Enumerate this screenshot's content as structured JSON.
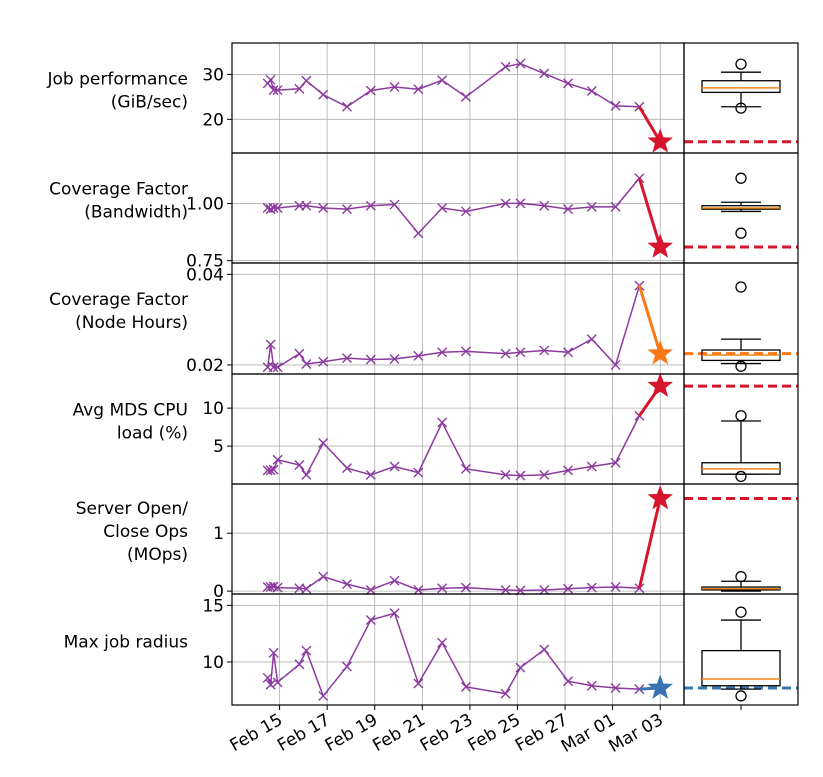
{
  "chart_data": {
    "type": "line",
    "x_axis": {
      "tick_labels": [
        "Feb 15",
        "Feb 17",
        "Feb 19",
        "Feb 21",
        "Feb 23",
        "Feb 25",
        "Feb 27",
        "Mar 01",
        "Mar 03"
      ],
      "tick_dates": [
        "2019-02-15",
        "2019-02-17",
        "2019-02-19",
        "2019-02-21",
        "2019-02-23",
        "2019-02-25",
        "2019-02-27",
        "2019-03-01",
        "2019-03-03"
      ],
      "range": [
        "2019-02-13",
        "2019-03-04"
      ]
    },
    "dates": [
      "2019-02-14T12",
      "2019-02-14T15",
      "2019-02-14T18",
      "2019-02-14T22",
      "2019-02-15T20",
      "2019-02-16T03",
      "2019-02-16T20",
      "2019-02-17T20",
      "2019-02-18T20",
      "2019-02-19T20",
      "2019-02-20T20",
      "2019-02-21T20",
      "2019-02-22T20",
      "2019-02-24T12",
      "2019-02-25T03",
      "2019-02-26T03",
      "2019-02-27T03",
      "2019-02-28T03",
      "2019-03-01T03",
      "2019-03-02T03"
    ],
    "series_color": "#8b3a9e",
    "panels": [
      {
        "ylabel": [
          "Job performance",
          "(GiB/sec)"
        ],
        "ylim": [
          12.5,
          37
        ],
        "yticks": [
          {
            "v": 20,
            "label": "20"
          },
          {
            "v": 30,
            "label": "30"
          }
        ],
        "values": [
          28.0,
          28.8,
          26.5,
          26.5,
          26.8,
          28.6,
          25.5,
          22.8,
          26.4,
          27.2,
          26.7,
          28.7,
          25.0,
          31.7,
          32.4,
          30.2,
          28.0,
          26.3,
          23.0,
          22.8
        ],
        "outlier": {
          "date": "2019-03-03",
          "value": 15.0,
          "color": "#d7152d",
          "reference": 15.0,
          "reference_color": "#d7152d"
        },
        "box": {
          "min": 22.8,
          "q1": 26.0,
          "median": 27.0,
          "q3": 28.6,
          "max": 30.5,
          "fliers": [
            22.5,
            32.3
          ]
        }
      },
      {
        "ylabel": [
          "Coverage Factor",
          "(Bandwidth)"
        ],
        "ylim": [
          0.74,
          1.22
        ],
        "yticks": [
          {
            "v": 0.75,
            "label": "0.75"
          },
          {
            "v": 1.0,
            "label": "1.00"
          }
        ],
        "values": [
          0.98,
          0.975,
          0.98,
          0.98,
          0.99,
          0.99,
          0.98,
          0.975,
          0.99,
          0.995,
          0.87,
          0.98,
          0.965,
          1.0,
          1.0,
          0.99,
          0.975,
          0.985,
          0.985,
          1.11
        ],
        "outlier": {
          "date": "2019-03-03",
          "value": 0.81,
          "color": "#d7152d",
          "reference": 0.81,
          "reference_color": "#d7152d"
        },
        "box": {
          "min": 0.965,
          "q1": 0.975,
          "median": 0.98,
          "q3": 0.99,
          "max": 1.005,
          "fliers": [
            0.87,
            1.11
          ]
        }
      },
      {
        "ylabel": [
          "Coverage Factor",
          "(Node Hours)"
        ],
        "ylim": [
          0.018,
          0.0425
        ],
        "yticks": [
          {
            "v": 0.02,
            "label": "0.02"
          },
          {
            "v": 0.04,
            "label": "0.04"
          }
        ],
        "values": [
          0.0195,
          0.0245,
          0.0195,
          0.0195,
          0.0225,
          0.0202,
          0.0207,
          0.0215,
          0.0212,
          0.0213,
          0.022,
          0.0228,
          0.023,
          0.0225,
          0.0228,
          0.0232,
          0.0228,
          0.0257,
          0.02,
          0.0375
        ],
        "outlier": {
          "date": "2019-03-03",
          "value": 0.0225,
          "color": "#fb7814",
          "reference": 0.0225,
          "reference_color": "#fb7814"
        },
        "box": {
          "min": 0.0203,
          "q1": 0.021,
          "median": 0.0222,
          "q3": 0.0233,
          "max": 0.0257,
          "fliers": [
            0.0197,
            0.0372
          ]
        }
      },
      {
        "ylabel": [
          "Avg MDS CPU",
          "load (%)"
        ],
        "ylim": [
          0,
          14.5
        ],
        "yticks": [
          {
            "v": 5,
            "label": "5"
          },
          {
            "v": 10,
            "label": "10"
          }
        ],
        "values": [
          1.8,
          1.8,
          1.9,
          3.2,
          2.5,
          1.2,
          5.4,
          2.1,
          1.2,
          2.3,
          1.5,
          8.1,
          2.0,
          1.2,
          1.1,
          1.2,
          1.8,
          2.3,
          2.8,
          9.0
        ],
        "outlier": {
          "date": "2019-03-03",
          "value": 12.9,
          "color": "#d7152d",
          "reference": 12.9,
          "reference_color": "#d7152d"
        },
        "box": {
          "min": 1.3,
          "q1": 1.3,
          "median": 2.0,
          "q3": 2.8,
          "max": 8.3,
          "fliers": [
            1.0,
            9.0
          ]
        }
      },
      {
        "ylabel": [
          "Server Open/",
          "Close Ops",
          "(MOps)"
        ],
        "ylim": [
          -0.05,
          1.85
        ],
        "yticks": [
          {
            "v": 0,
            "label": "0"
          },
          {
            "v": 1,
            "label": "1"
          }
        ],
        "values": [
          0.07,
          0.07,
          0.08,
          0.06,
          0.05,
          0.04,
          0.25,
          0.12,
          0.02,
          0.18,
          0.02,
          0.05,
          0.06,
          0.02,
          0.01,
          0.02,
          0.04,
          0.06,
          0.07,
          0.05
        ],
        "outlier": {
          "date": "2019-03-03",
          "value": 1.6,
          "color": "#d7152d",
          "reference": 1.6,
          "reference_color": "#d7152d"
        },
        "box": {
          "min": 0.0,
          "q1": 0.02,
          "median": 0.04,
          "q3": 0.07,
          "max": 0.17,
          "fliers": [
            0.25
          ]
        }
      },
      {
        "ylabel": [
          "Max job radius"
        ],
        "ylim": [
          6.2,
          16
        ],
        "yticks": [
          {
            "v": 10,
            "label": "10"
          },
          {
            "v": 15,
            "label": "15"
          }
        ],
        "values": [
          8.6,
          8.0,
          10.8,
          8.2,
          9.8,
          11.0,
          7.0,
          9.6,
          13.7,
          14.3,
          8.1,
          11.7,
          7.8,
          7.2,
          9.5,
          11.1,
          8.3,
          7.9,
          7.7,
          7.6
        ],
        "outlier": {
          "date": "2019-03-03",
          "value": 7.7,
          "color": "#3a73b2",
          "reference": 7.7,
          "reference_color": "#3a73b2"
        },
        "box": {
          "min": 7.6,
          "q1": 7.9,
          "median": 8.5,
          "q3": 11.0,
          "max": 13.7,
          "fliers": [
            14.4,
            7.0
          ]
        }
      }
    ],
    "grid": true,
    "box_median_color": "#f58518"
  }
}
